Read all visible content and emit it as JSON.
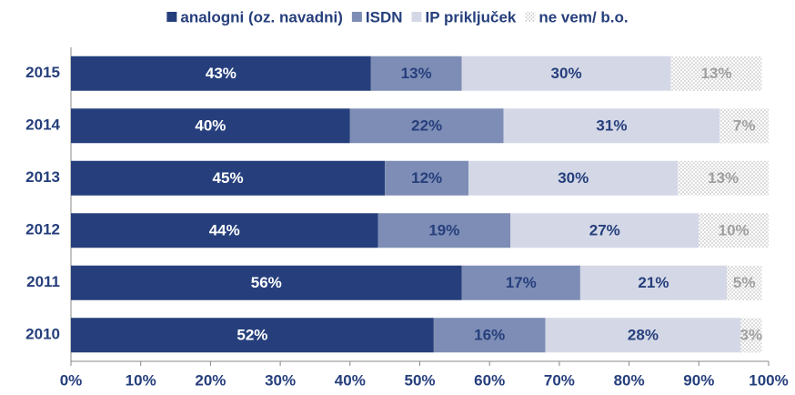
{
  "chart_data": {
    "type": "stacked_bar_horizontal",
    "categories": [
      "2015",
      "2014",
      "2013",
      "2012",
      "2011",
      "2010"
    ],
    "series": [
      {
        "name": "analogni (oz. navadni)",
        "color": "#263f7c",
        "values": [
          43,
          40,
          45,
          44,
          56,
          52
        ],
        "value_labels": [
          "43%",
          "40%",
          "45%",
          "44%",
          "56%",
          "52%"
        ]
      },
      {
        "name": "ISDN",
        "color": "#7d8db5",
        "values": [
          13,
          22,
          12,
          19,
          17,
          16
        ],
        "value_labels": [
          "13%",
          "22%",
          "12%",
          "19%",
          "17%",
          "16%"
        ]
      },
      {
        "name": "IP priključek",
        "color": "#d4d8e6",
        "values": [
          30,
          31,
          30,
          27,
          21,
          28
        ],
        "value_labels": [
          "30%",
          "31%",
          "30%",
          "27%",
          "21%",
          "28%"
        ]
      },
      {
        "name": "ne vem/ b.o.",
        "color": "#b0b0b0",
        "values": [
          13,
          7,
          13,
          10,
          5,
          3
        ],
        "value_labels": [
          "13%",
          "7%",
          "13%",
          "10%",
          "5%",
          "3%"
        ]
      }
    ],
    "xlim": [
      0,
      100
    ],
    "xticks": [
      {
        "value": 0,
        "label": "0%"
      },
      {
        "value": 10,
        "label": "10%"
      },
      {
        "value": 20,
        "label": "20%"
      },
      {
        "value": 30,
        "label": "30%"
      },
      {
        "value": 40,
        "label": "40%"
      },
      {
        "value": 50,
        "label": "50%"
      },
      {
        "value": 60,
        "label": "60%"
      },
      {
        "value": 70,
        "label": "70%"
      },
      {
        "value": 80,
        "label": "80%"
      },
      {
        "value": 90,
        "label": "90%"
      },
      {
        "value": 100,
        "label": "100%"
      }
    ],
    "legend": "top"
  }
}
